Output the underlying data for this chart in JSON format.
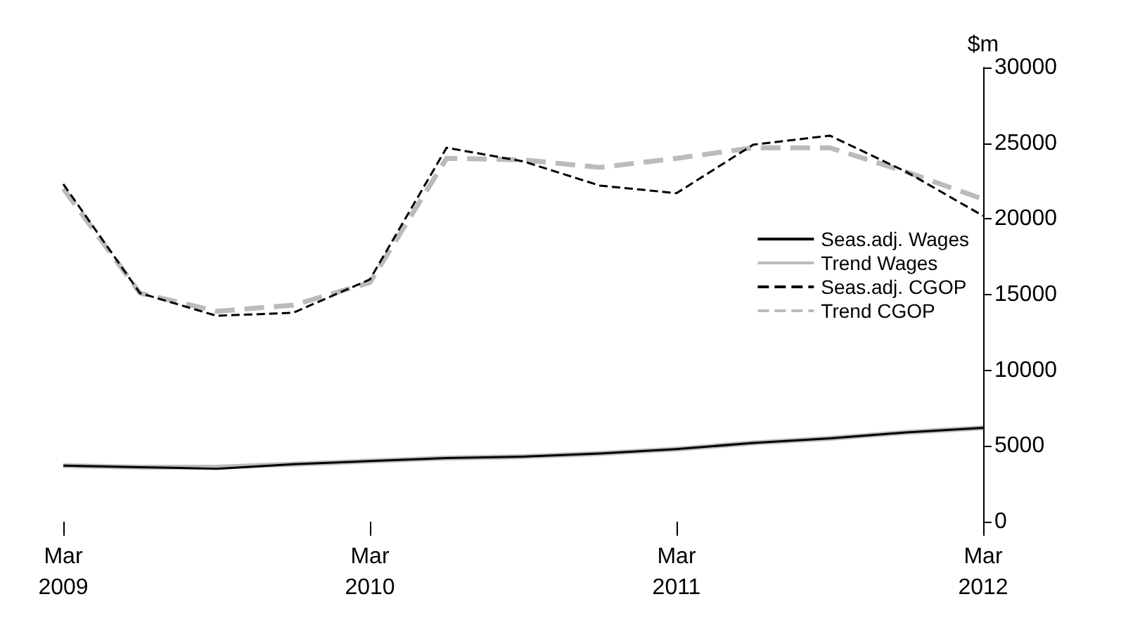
{
  "chart_data": {
    "type": "line",
    "ylabel": "$m",
    "categories": [
      "Mar\n2009",
      null,
      null,
      null,
      "Mar\n2010",
      null,
      null,
      null,
      "Mar\n2011",
      null,
      null,
      null,
      "Mar\n2012"
    ],
    "ylim": [
      0,
      30000
    ],
    "yticks": [
      0,
      5000,
      10000,
      15000,
      20000,
      25000,
      30000
    ],
    "grid": false,
    "legend": "right",
    "marker": "none",
    "series": [
      {
        "name": "Seas.adj. Wages",
        "color": "#000000",
        "line_style": "solid",
        "values": [
          3700,
          3600,
          3500,
          3800,
          4000,
          4200,
          4300,
          4500,
          4800,
          5200,
          5500,
          5900,
          6200
        ]
      },
      {
        "name": "Trend Wages",
        "color": "#bbbbbb",
        "line_style": "solid",
        "values": [
          3700,
          3600,
          3600,
          3800,
          4000,
          4200,
          4300,
          4500,
          4800,
          5200,
          5500,
          5900,
          6200
        ]
      },
      {
        "name": "Seas.adj. CGOP",
        "color": "#000000",
        "line_style": "dashed",
        "values": [
          22300,
          15100,
          13600,
          13800,
          16000,
          24700,
          23800,
          22200,
          21700,
          24900,
          25500,
          23100,
          20200
        ]
      },
      {
        "name": "Trend CGOP",
        "color": "#bbbbbb",
        "line_style": "dashed",
        "values": [
          22000,
          15100,
          13900,
          14300,
          15800,
          24000,
          23900,
          23400,
          24000,
          24700,
          24700,
          23100,
          21300
        ]
      }
    ]
  }
}
